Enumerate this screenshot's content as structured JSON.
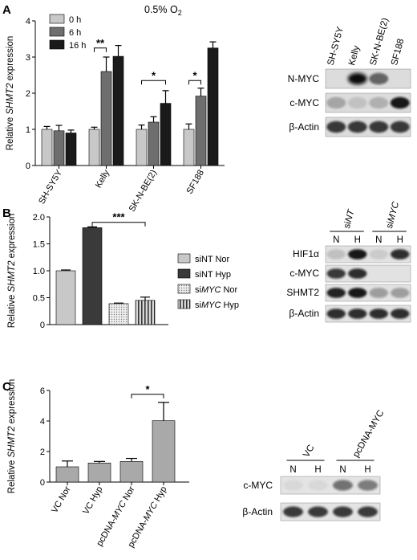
{
  "panel_letters": [
    "A",
    "B",
    "C"
  ],
  "condition_label": "0.5% O2",
  "chart_data": [
    {
      "type": "bar",
      "panel": "A",
      "ylabel_pre": "Relative ",
      "ylabel_gene": "SHMT2",
      "ylabel_post": " expression",
      "ylim": [
        0,
        4
      ],
      "yticks": [
        "0",
        "1",
        "2",
        "3",
        "4"
      ],
      "categories": [
        "SH-SY5Y",
        "Kelly",
        "SK-N-BE(2)",
        "SF188"
      ],
      "series": [
        {
          "name": "0 h",
          "color": "#c8c8c8",
          "values": [
            1.0,
            1.0,
            1.0,
            1.0
          ],
          "errors": [
            0.08,
            0.06,
            0.12,
            0.15
          ]
        },
        {
          "name": "6 h",
          "color": "#6e6e6e",
          "values": [
            0.96,
            2.6,
            1.2,
            1.92
          ],
          "errors": [
            0.15,
            0.4,
            0.15,
            0.22
          ]
        },
        {
          "name": "16 h",
          "color": "#1a1a1a",
          "values": [
            0.9,
            3.02,
            1.72,
            3.25
          ],
          "errors": [
            0.08,
            0.3,
            0.35,
            0.17
          ]
        }
      ],
      "significance": [
        {
          "label": "**",
          "category": 1,
          "from": 0,
          "to": 1,
          "y": 3.25
        },
        {
          "label": "*",
          "category": 2,
          "from": 0,
          "to": 2,
          "y": 2.35
        },
        {
          "label": "*",
          "category": 3,
          "from": 0,
          "to": 1,
          "y": 2.35
        }
      ],
      "legend_placement": "top-left"
    },
    {
      "type": "bar",
      "panel": "B",
      "ylabel_pre": "Relative ",
      "ylabel_gene": "SHMT2",
      "ylabel_post": " expression",
      "ylim": [
        0,
        2
      ],
      "yticks": [
        "0",
        "0.5",
        "1.0",
        "1.5",
        "2.0"
      ],
      "categories": [
        "siNT Nor",
        "siNT Hyp",
        "siMYC Nor",
        "siMYC Hyp"
      ],
      "values": [
        1.0,
        1.8,
        0.39,
        0.45
      ],
      "errors": [
        0.015,
        0.015,
        0.01,
        0.06
      ],
      "fills": [
        "light",
        "dark",
        "dots",
        "stripes"
      ],
      "significance": [
        {
          "label": "***",
          "from": 1,
          "to": 3,
          "y": 1.9
        }
      ],
      "legend": [
        {
          "pre": "si",
          "italic": "NT",
          "post": " Nor",
          "italic_part": false,
          "fill": "light"
        },
        {
          "pre": "si",
          "italic": "NT",
          "post": " Hyp",
          "italic_part": false,
          "fill": "dark"
        },
        {
          "pre": "si",
          "italic": "MYC",
          "post": " Nor",
          "italic_part": true,
          "fill": "dots"
        },
        {
          "pre": "si",
          "italic": "MYC",
          "post": " Hyp",
          "italic_part": true,
          "fill": "stripes"
        }
      ],
      "legend_placement": "right"
    },
    {
      "type": "bar",
      "panel": "C",
      "ylabel_pre": "Relative ",
      "ylabel_gene": "SHMT2",
      "ylabel_post": " expression",
      "ylim": [
        0,
        6
      ],
      "yticks": [
        "0",
        "2",
        "4",
        "6"
      ],
      "categories": [
        "VC Nor",
        "VC Hyp",
        "pcDNA-MYC Nor",
        "pcDNA-MYC Hyp"
      ],
      "category_parts": [
        {
          "pre": "VC Nor",
          "italic": "",
          "post": ""
        },
        {
          "pre": "VC Hyp",
          "italic": "",
          "post": ""
        },
        {
          "pre": "pcDNA-",
          "italic": "MYC",
          "post": " Nor"
        },
        {
          "pre": "pcDNA-",
          "italic": "MYC",
          "post": " Hyp"
        }
      ],
      "values": [
        1.0,
        1.25,
        1.35,
        4.02
      ],
      "errors": [
        0.38,
        0.1,
        0.2,
        1.2
      ],
      "significance": [
        {
          "label": "*",
          "from": 2,
          "to": 3,
          "y": 5.75
        }
      ]
    }
  ],
  "blots": {
    "A": {
      "lanes": [
        "SH-SY5Y",
        "Kelly",
        "SK-N-BE(2)",
        "SF188"
      ],
      "rows": [
        "N-MYC",
        "c-MYC",
        "β-Actin"
      ]
    },
    "B": {
      "groups": [
        {
          "pre": "si",
          "italic": "NT"
        },
        {
          "pre": "si",
          "italic": "MYC"
        }
      ],
      "lanes": [
        "N",
        "H",
        "N",
        "H"
      ],
      "rows": [
        "HIF1α",
        "c-MYC",
        "SHMT2",
        "β-Actin"
      ]
    },
    "C": {
      "groups": [
        {
          "label": "VC"
        },
        {
          "label": "pcDNA-MYC"
        }
      ],
      "lanes": [
        "N",
        "H",
        "N",
        "H"
      ],
      "rows": [
        "c-MYC",
        "β-Actin"
      ]
    }
  }
}
